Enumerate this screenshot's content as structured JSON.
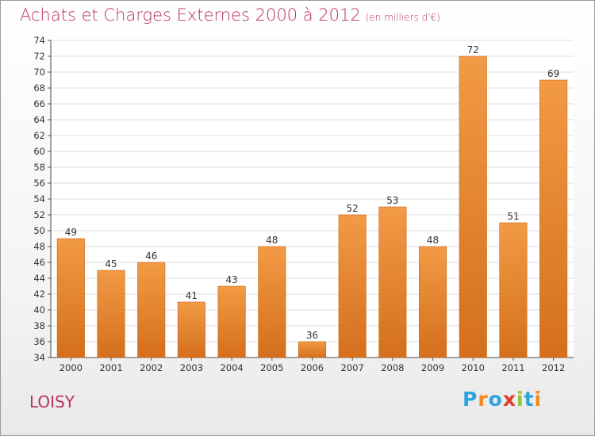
{
  "header": {
    "title": "Achats et Charges Externes 2000 à 2012",
    "subtitle": "(en milliers d'€)"
  },
  "footer": {
    "commune": "LOISY",
    "logo_letters": [
      "P",
      "r",
      "o",
      "x",
      "i",
      "t",
      "i"
    ]
  },
  "chart_data": {
    "type": "bar",
    "title": "Achats et Charges Externes 2000 à 2012",
    "subtitle": "(en milliers d'€)",
    "xlabel": "",
    "ylabel": "",
    "categories": [
      "2000",
      "2001",
      "2002",
      "2003",
      "2004",
      "2005",
      "2006",
      "2007",
      "2008",
      "2009",
      "2010",
      "2011",
      "2012"
    ],
    "values": [
      49,
      45,
      46,
      41,
      43,
      48,
      36,
      52,
      53,
      48,
      72,
      51,
      69
    ],
    "ylim": [
      34,
      74
    ],
    "ytick_step": 2,
    "grid": true,
    "legend": "none",
    "bar_color": "#f29a45",
    "bar_color_dark": "#d46f1d"
  }
}
